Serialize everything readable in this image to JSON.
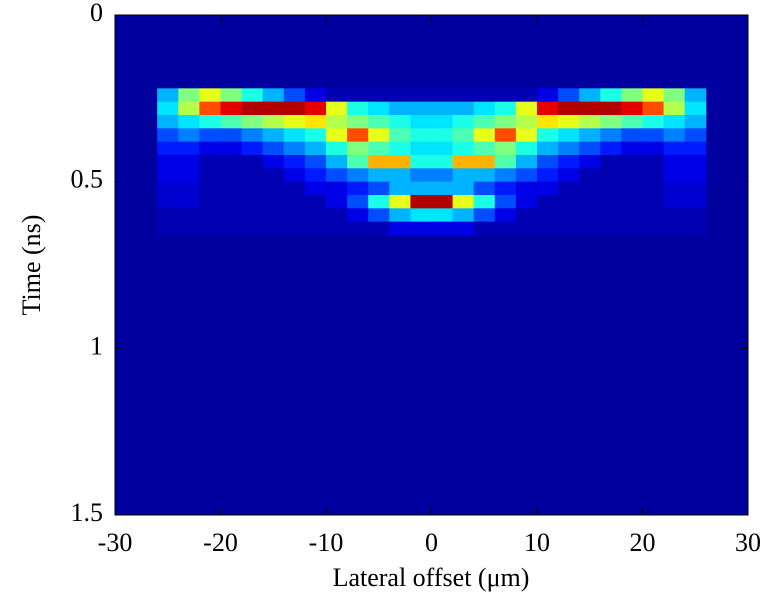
{
  "chart_data": {
    "type": "heatmap",
    "colormap": "jet",
    "xlabel": "Lateral offset  (μm)",
    "ylabel": "Time  (ns)",
    "xlim": [
      -30,
      30
    ],
    "xticks": [
      -30,
      -20,
      -10,
      0,
      10,
      20,
      30
    ],
    "ylim": [
      0,
      1.5
    ],
    "y_reversed": true,
    "yticks": [
      0,
      0.5,
      1,
      1.5
    ],
    "x_edges": [
      -26,
      -24,
      -22,
      -20,
      -18,
      -16,
      -14,
      -12,
      -10,
      -8,
      -6,
      -4,
      -2,
      0,
      2,
      4,
      6,
      8,
      10,
      12,
      14,
      16,
      18,
      20,
      22,
      24,
      26
    ],
    "y_edges": [
      0.22,
      0.26,
      0.3,
      0.34,
      0.38,
      0.42,
      0.46,
      0.5,
      0.54,
      0.58,
      0.62,
      0.66
    ],
    "z": [
      [
        0.3,
        0.5,
        0.6,
        0.5,
        0.4,
        0.3,
        0.2,
        0.1,
        0.05,
        0.05,
        0.05,
        0.05,
        0.05,
        0.05,
        0.05,
        0.05,
        0.05,
        0.05,
        0.1,
        0.2,
        0.3,
        0.4,
        0.5,
        0.6,
        0.5,
        0.3
      ],
      [
        0.35,
        0.55,
        0.8,
        0.9,
        0.95,
        0.95,
        0.95,
        0.9,
        0.6,
        0.4,
        0.35,
        0.3,
        0.3,
        0.3,
        0.3,
        0.35,
        0.4,
        0.6,
        0.9,
        0.95,
        0.95,
        0.95,
        0.9,
        0.8,
        0.55,
        0.35
      ],
      [
        0.3,
        0.35,
        0.4,
        0.45,
        0.5,
        0.55,
        0.6,
        0.65,
        0.55,
        0.5,
        0.45,
        0.4,
        0.35,
        0.35,
        0.4,
        0.45,
        0.5,
        0.55,
        0.65,
        0.6,
        0.55,
        0.5,
        0.45,
        0.4,
        0.35,
        0.3
      ],
      [
        0.2,
        0.25,
        0.2,
        0.2,
        0.25,
        0.3,
        0.35,
        0.4,
        0.6,
        0.8,
        0.6,
        0.45,
        0.4,
        0.4,
        0.45,
        0.6,
        0.8,
        0.6,
        0.4,
        0.35,
        0.3,
        0.25,
        0.2,
        0.2,
        0.25,
        0.2
      ],
      [
        0.15,
        0.15,
        0.1,
        0.1,
        0.15,
        0.2,
        0.25,
        0.3,
        0.4,
        0.5,
        0.45,
        0.4,
        0.35,
        0.35,
        0.4,
        0.45,
        0.5,
        0.4,
        0.3,
        0.25,
        0.2,
        0.15,
        0.1,
        0.1,
        0.15,
        0.15
      ],
      [
        0.1,
        0.1,
        0.05,
        0.05,
        0.05,
        0.1,
        0.15,
        0.2,
        0.3,
        0.45,
        0.7,
        0.7,
        0.4,
        0.4,
        0.7,
        0.7,
        0.45,
        0.3,
        0.2,
        0.15,
        0.1,
        0.05,
        0.05,
        0.05,
        0.1,
        0.1
      ],
      [
        0.1,
        0.1,
        0.05,
        0.05,
        0.05,
        0.05,
        0.1,
        0.15,
        0.2,
        0.25,
        0.3,
        0.3,
        0.25,
        0.25,
        0.3,
        0.3,
        0.25,
        0.2,
        0.15,
        0.1,
        0.05,
        0.05,
        0.05,
        0.05,
        0.1,
        0.1
      ],
      [
        0.08,
        0.08,
        0.05,
        0.05,
        0.05,
        0.05,
        0.05,
        0.1,
        0.1,
        0.15,
        0.2,
        0.3,
        0.3,
        0.3,
        0.3,
        0.2,
        0.15,
        0.1,
        0.1,
        0.05,
        0.05,
        0.05,
        0.05,
        0.05,
        0.08,
        0.08
      ],
      [
        0.08,
        0.08,
        0.05,
        0.05,
        0.05,
        0.05,
        0.05,
        0.05,
        0.1,
        0.2,
        0.4,
        0.6,
        0.95,
        0.95,
        0.6,
        0.4,
        0.2,
        0.1,
        0.05,
        0.05,
        0.05,
        0.05,
        0.05,
        0.05,
        0.08,
        0.08
      ],
      [
        0.05,
        0.05,
        0.05,
        0.05,
        0.05,
        0.05,
        0.05,
        0.05,
        0.05,
        0.1,
        0.2,
        0.3,
        0.35,
        0.35,
        0.3,
        0.2,
        0.1,
        0.05,
        0.05,
        0.05,
        0.05,
        0.05,
        0.05,
        0.05,
        0.05,
        0.05
      ],
      [
        0.05,
        0.05,
        0.05,
        0.05,
        0.05,
        0.05,
        0.05,
        0.05,
        0.05,
        0.05,
        0.05,
        0.1,
        0.1,
        0.1,
        0.1,
        0.05,
        0.05,
        0.05,
        0.05,
        0.05,
        0.05,
        0.05,
        0.05,
        0.05,
        0.05,
        0.05
      ]
    ]
  }
}
